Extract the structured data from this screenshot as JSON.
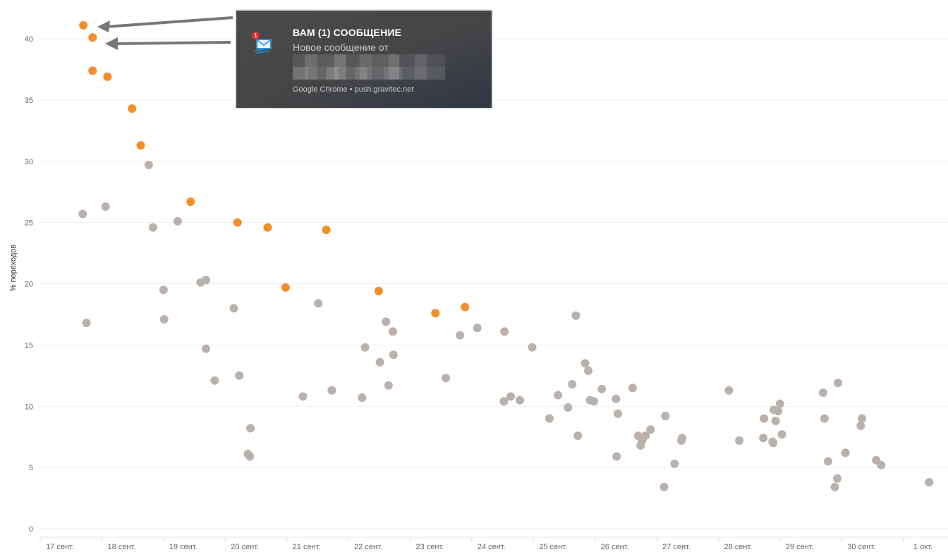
{
  "chart_data": {
    "type": "scatter",
    "ylabel": "% переходов",
    "ylim": [
      0,
      42
    ],
    "yticks": [
      0,
      5,
      10,
      15,
      20,
      25,
      30,
      35,
      40
    ],
    "xlim": [
      17,
      31.5
    ],
    "xticks": [
      {
        "x": 17,
        "label": "17 сент."
      },
      {
        "x": 18,
        "label": "18 сент."
      },
      {
        "x": 19,
        "label": "19 сент."
      },
      {
        "x": 20,
        "label": "20 сент."
      },
      {
        "x": 21,
        "label": "21 сент."
      },
      {
        "x": 22,
        "label": "22 сент."
      },
      {
        "x": 23,
        "label": "23 сент."
      },
      {
        "x": 24,
        "label": "24 сент."
      },
      {
        "x": 25,
        "label": "25 сент."
      },
      {
        "x": 26,
        "label": "26 сент."
      },
      {
        "x": 27,
        "label": "27 сент."
      },
      {
        "x": 28,
        "label": "28 сент."
      },
      {
        "x": 29,
        "label": "29 сент."
      },
      {
        "x": 30,
        "label": "30 сент."
      },
      {
        "x": 31,
        "label": "1 окт."
      }
    ],
    "grid": true,
    "colors": {
      "highlight": "#f28e2b",
      "other": "#bab0ac"
    },
    "series": [
      {
        "color": "#f28e2b",
        "points": [
          [
            17.38,
            41.1
          ],
          [
            17.53,
            40.1
          ],
          [
            17.53,
            37.4
          ],
          [
            17.77,
            36.9
          ],
          [
            18.17,
            34.3
          ],
          [
            18.31,
            31.3
          ],
          [
            19.12,
            26.7
          ],
          [
            19.88,
            25.0
          ],
          [
            20.37,
            24.6
          ],
          [
            20.66,
            19.7
          ],
          [
            21.32,
            24.4
          ],
          [
            22.17,
            19.4
          ],
          [
            23.09,
            17.6
          ],
          [
            23.57,
            18.1
          ]
        ]
      },
      {
        "color": "#bab0ac",
        "points": [
          [
            17.37,
            25.7
          ],
          [
            17.43,
            16.8
          ],
          [
            17.74,
            26.3
          ],
          [
            18.44,
            29.7
          ],
          [
            18.51,
            24.6
          ],
          [
            18.68,
            19.5
          ],
          [
            18.69,
            17.1
          ],
          [
            18.91,
            25.1
          ],
          [
            19.28,
            20.1
          ],
          [
            19.37,
            20.3
          ],
          [
            19.37,
            14.7
          ],
          [
            19.51,
            12.1
          ],
          [
            19.82,
            18.0
          ],
          [
            19.91,
            12.5
          ],
          [
            20.05,
            6.1
          ],
          [
            20.08,
            5.9
          ],
          [
            20.09,
            8.2
          ],
          [
            20.94,
            10.8
          ],
          [
            21.19,
            18.4
          ],
          [
            21.41,
            11.3
          ],
          [
            21.9,
            10.7
          ],
          [
            21.95,
            14.8
          ],
          [
            22.19,
            13.6
          ],
          [
            22.29,
            16.9
          ],
          [
            22.33,
            11.7
          ],
          [
            22.4,
            16.1
          ],
          [
            22.41,
            14.2
          ],
          [
            23.26,
            12.3
          ],
          [
            23.49,
            15.8
          ],
          [
            23.77,
            16.4
          ],
          [
            24.2,
            10.4
          ],
          [
            24.21,
            16.1
          ],
          [
            24.31,
            10.8
          ],
          [
            24.46,
            10.5
          ],
          [
            24.66,
            14.8
          ],
          [
            24.94,
            9.0
          ],
          [
            25.08,
            10.9
          ],
          [
            25.24,
            9.9
          ],
          [
            25.31,
            11.8
          ],
          [
            25.37,
            17.4
          ],
          [
            25.4,
            7.6
          ],
          [
            25.52,
            13.5
          ],
          [
            25.57,
            12.9
          ],
          [
            25.6,
            10.5
          ],
          [
            25.66,
            10.4
          ],
          [
            25.79,
            11.4
          ],
          [
            26.02,
            10.6
          ],
          [
            26.03,
            5.9
          ],
          [
            26.05,
            9.4
          ],
          [
            26.29,
            11.5
          ],
          [
            26.38,
            7.6
          ],
          [
            26.42,
            6.8
          ],
          [
            26.44,
            7.2
          ],
          [
            26.5,
            7.6
          ],
          [
            26.58,
            8.1
          ],
          [
            26.8,
            3.4
          ],
          [
            26.82,
            9.2
          ],
          [
            26.97,
            5.3
          ],
          [
            27.08,
            7.2
          ],
          [
            27.09,
            7.4
          ],
          [
            27.85,
            11.3
          ],
          [
            28.02,
            7.2
          ],
          [
            28.41,
            7.4
          ],
          [
            28.42,
            9.0
          ],
          [
            28.56,
            7.1
          ],
          [
            28.57,
            7.0
          ],
          [
            28.58,
            9.7
          ],
          [
            28.61,
            8.8
          ],
          [
            28.65,
            9.6
          ],
          [
            28.68,
            10.2
          ],
          [
            28.71,
            7.7
          ],
          [
            29.38,
            11.1
          ],
          [
            29.4,
            9.0
          ],
          [
            29.46,
            5.5
          ],
          [
            29.57,
            3.4
          ],
          [
            29.61,
            4.1
          ],
          [
            29.62,
            11.9
          ],
          [
            29.74,
            6.2
          ],
          [
            29.99,
            8.4
          ],
          [
            30.01,
            9.0
          ],
          [
            30.24,
            5.6
          ],
          [
            30.32,
            5.2
          ],
          [
            31.1,
            3.8
          ]
        ]
      }
    ]
  },
  "notification": {
    "title": "ВАМ (1) СООБЩЕНИЕ",
    "body": "Новое сообщение от",
    "source": "Google Chrome • push.gravitec.net",
    "badge": "1",
    "icon": "mail-icon"
  }
}
